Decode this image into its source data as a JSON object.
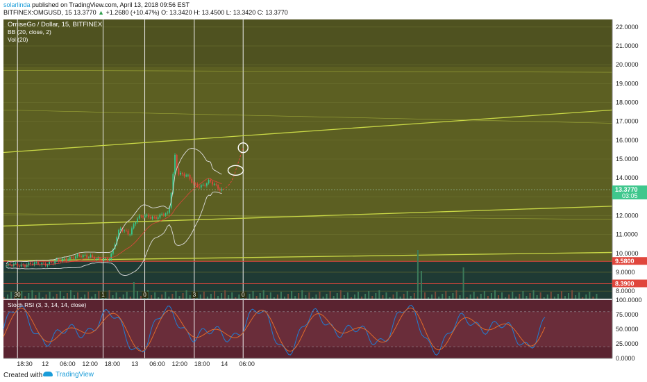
{
  "header": {
    "user": "solarlinda",
    "published": " published on TradingView.com, April 13, 2018 09:56 EST",
    "symbol": "BITFINEX:OMGUSD, 15",
    "last": "13.3770",
    "change": "+1.2680 (+10.47%)",
    "ohlc": "O: 13.3420 H: 13.4500 L: 13.3420 C: 13.3770"
  },
  "legend": {
    "title": "OmiseGo / Dollar, 15, BITFINEX",
    "bb": "BB (20, close, 2)",
    "vol": "Vol (20)"
  },
  "stoch_label": "Stoch RSI (3, 3, 14, 14, close)",
  "footer": {
    "made": "Created with",
    "brand": "TradingView"
  },
  "colors": {
    "background": "#5c5f22",
    "grid": "#6d702f",
    "candle_up": "#36c98e",
    "candle_down": "#e0463c",
    "bb": "#dddddd",
    "trend": "#c9d846",
    "price_line": "#e0463c",
    "stoch_k": "#1e7fd6",
    "stoch_d": "#e06a2a",
    "stoch_bg": "#5a2330"
  },
  "chart_data": {
    "type": "candlestick",
    "title": "OmiseGo / Dollar, 15, BITFINEX",
    "price_axis": {
      "range": [
        7.6,
        22.4
      ],
      "ticks": [
        "22.0000",
        "21.0000",
        "20.0000",
        "19.0000",
        "18.0000",
        "17.0000",
        "16.0000",
        "15.0000",
        "14.0000",
        "13.0000",
        "12.0000",
        "11.0000",
        "10.0000",
        "9.0000",
        "8.0000"
      ],
      "labels": [
        {
          "value": 13.377,
          "text": "13.3770",
          "sub": "03:05",
          "color": "#3fc78d"
        },
        {
          "value": 9.58,
          "text": "9.5800",
          "color": "#e0463c"
        },
        {
          "value": 8.39,
          "text": "8.3900",
          "color": "#e0463c"
        }
      ]
    },
    "time_axis": {
      "ticks": [
        "18:30",
        "12",
        "06:00",
        "12:00",
        "18:00",
        "13",
        "06:00",
        "12:00",
        "18:00",
        "14",
        "06:00"
      ],
      "vertical_line_labels": [
        "30",
        "1",
        "0",
        "3",
        "0"
      ]
    },
    "horizontal_levels": [
      9.58,
      8.39
    ],
    "path": [
      [
        "2018-04-11 14:00",
        9.35
      ],
      [
        "2018-04-11 20:00",
        9.42
      ],
      [
        "2018-04-12 02:00",
        9.5
      ],
      [
        "2018-04-12 06:00",
        9.75
      ],
      [
        "2018-04-12 12:00",
        9.9
      ],
      [
        "2018-04-12 14:30",
        9.6
      ],
      [
        "2018-04-12 17:00",
        9.7
      ],
      [
        "2018-04-12 18:00",
        10.1
      ],
      [
        "2018-04-12 19:00",
        10.8
      ],
      [
        "2018-04-12 20:00",
        11.3
      ],
      [
        "2018-04-12 22:30",
        11.0
      ],
      [
        "2018-04-13 00:30",
        11.9
      ],
      [
        "2018-04-13 02:00",
        11.95
      ],
      [
        "2018-04-13 05:00",
        11.9
      ],
      [
        "2018-04-13 08:00",
        12.1
      ],
      [
        "2018-04-13 09:00",
        12.0
      ],
      [
        "2018-04-13 10:00",
        13.7
      ],
      [
        "2018-04-13 10:45",
        15.2
      ],
      [
        "2018-04-13 11:30",
        14.3
      ],
      [
        "2018-04-13 14:00",
        14.1
      ],
      [
        "2018-04-13 16:00",
        13.6
      ],
      [
        "2018-04-13 18:00",
        13.6
      ],
      [
        "2018-04-13 20:00",
        13.8
      ],
      [
        "2018-04-13 22:00",
        13.5
      ],
      [
        "2018-04-13 23:30",
        13.377
      ]
    ],
    "projection": [
      [
        "2018-04-13 23:30",
        13.377
      ],
      [
        "2018-04-14 03:00",
        14.4
      ],
      [
        "2018-04-14 05:00",
        15.6
      ]
    ],
    "volume_spikes_at": [
      "2018-04-13 10:00",
      "2018-04-13 16:00"
    ],
    "stoch_axis": {
      "ticks": [
        "100.0000",
        "75.0000",
        "50.0000",
        "25.0000",
        "0.0000"
      ],
      "range": [
        0,
        100
      ]
    }
  }
}
